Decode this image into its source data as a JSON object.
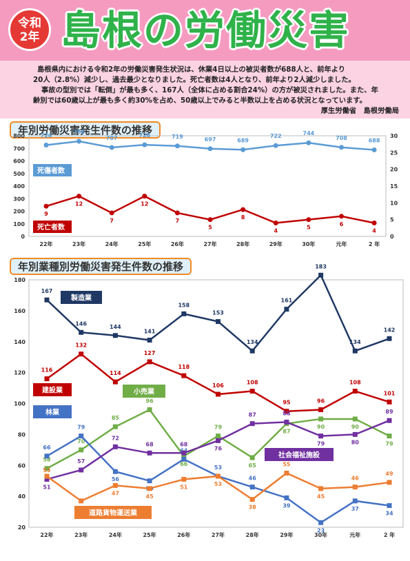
{
  "header": {
    "badge_line1": "令和",
    "badge_line2": "2年",
    "title": "島根の労働災害",
    "title_color": "#2fb24a",
    "bg_color": "#f59bc0"
  },
  "intro": {
    "line1": "島根県内における令和2年の労働災害発生状況は、休業4日以上の被災者数が688人と、前年より",
    "line2": "20人（2.8%）減少し、過去最少となりました。死亡者数は4人となり、前年より2人減少しました。",
    "line3": "事故の型別では「転倒」が最も多く、167人（全体に占める割合24%）の方が被災されました。また、年",
    "line4": "齢別では60歳以上が最も多く約30%を占め、50歳以上でみると半数以上を占める状況となっています。",
    "source": "厚生労働省　島根労働局"
  },
  "chart_data": [
    {
      "type": "line",
      "title": "年別労働災害発生件数の推移",
      "categories": [
        "22年",
        "23年",
        "24年",
        "25年",
        "26年",
        "27年",
        "28年",
        "29年",
        "30年",
        "元年",
        "2 年"
      ],
      "y_left_ticks": [
        "0",
        "100",
        "200",
        "300",
        "400",
        "500",
        "600",
        "700",
        "800"
      ],
      "y_right_ticks": [
        "0",
        "5",
        "10",
        "15",
        "20",
        "25",
        "30"
      ],
      "ylim_left": [
        0,
        800
      ],
      "ylim_right": [
        0,
        30
      ],
      "grid": false,
      "series": [
        {
          "name": "死傷者数",
          "axis": "left",
          "color": "#5b9bd5",
          "values": [
            726,
            756,
            707,
            728,
            719,
            697,
            689,
            722,
            744,
            708,
            688
          ]
        },
        {
          "name": "死亡者数",
          "axis": "right",
          "color": "#c00000",
          "values": [
            9,
            12,
            7,
            12,
            7,
            5,
            8,
            4,
            5,
            6,
            4
          ]
        }
      ]
    },
    {
      "type": "line",
      "title": "年別業種別労働災害発生件数の推移",
      "categories": [
        "22年",
        "23年",
        "24年",
        "25年",
        "26年",
        "27年",
        "28年",
        "29年",
        "30年",
        "元年",
        "2 年"
      ],
      "y_ticks": [
        "20",
        "40",
        "60",
        "80",
        "100",
        "120",
        "140",
        "160",
        "180"
      ],
      "ylim": [
        20,
        180
      ],
      "grid": false,
      "series": [
        {
          "name": "製造業",
          "color": "#1f3864",
          "values": [
            167,
            146,
            144,
            141,
            158,
            153,
            134,
            161,
            183,
            134,
            142
          ]
        },
        {
          "name": "建設業",
          "color": "#c00000",
          "values": [
            116,
            132,
            114,
            127,
            118,
            106,
            108,
            95,
            96,
            108,
            101
          ]
        },
        {
          "name": "小売業",
          "color": "#70ad47",
          "values": [
            58,
            70,
            85,
            96,
            66,
            79,
            65,
            87,
            90,
            90,
            79
          ]
        },
        {
          "name": "林業",
          "color": "#4472c4",
          "values": [
            66,
            79,
            56,
            50,
            64,
            53,
            46,
            39,
            23,
            37,
            34
          ]
        },
        {
          "name": "社会福祉施設",
          "color": "#7030a0",
          "values": [
            51,
            57,
            72,
            68,
            68,
            76,
            87,
            88,
            79,
            80,
            89
          ]
        },
        {
          "name": "道路貨物運送業",
          "color": "#ed7d31",
          "values": [
            53,
            37,
            47,
            45,
            51,
            53,
            38,
            55,
            45,
            46,
            49
          ]
        }
      ]
    }
  ]
}
